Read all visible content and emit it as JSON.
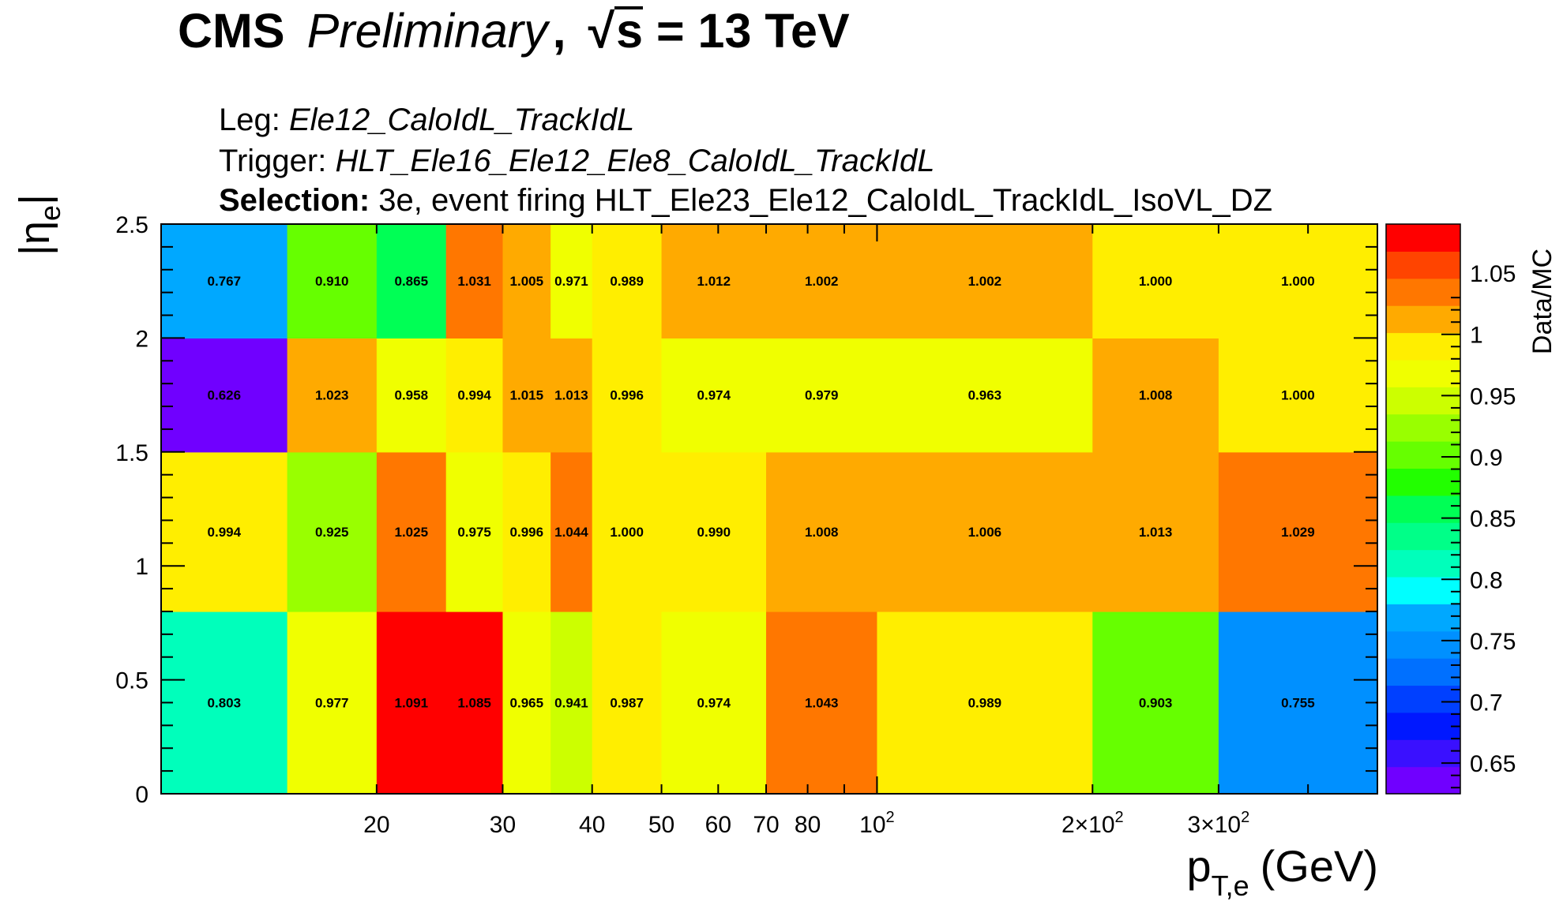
{
  "header": {
    "cms": "CMS",
    "preliminary": "Preliminary",
    "comma": ",",
    "sqrt_symbol": "√",
    "sqrt_arg": "s",
    "energy": "= 13 TeV"
  },
  "info": {
    "leg_label": "Leg:",
    "leg_value": "Ele12_CaloIdL_TrackIdL",
    "trigger_label": "Trigger:",
    "trigger_value": "HLT_Ele16_Ele12_Ele8_CaloIdL_TrackIdL",
    "selection_label": "Selection:",
    "selection_value": "3e, event firing HLT_Ele23_Ele12_CaloIdL_TrackIdL_IsoVL_DZ"
  },
  "chart_data": {
    "type": "heatmap",
    "xlabel": "p",
    "xlabel_sub": "T,e",
    "xlabel_unit": "(GeV)",
    "ylabel": "|η",
    "ylabel_sub": "e",
    "ylabel_close": "|",
    "zlabel": "Data/MC",
    "x_scale": "log",
    "x_edges": [
      10,
      15,
      20,
      25,
      30,
      35,
      40,
      50,
      70,
      100,
      200,
      300,
      500
    ],
    "y_edges": [
      0,
      0.8,
      1.5,
      2.0,
      2.5
    ],
    "x_tick_labels": [
      {
        "value": 20,
        "label": "20"
      },
      {
        "value": 30,
        "label": "30"
      },
      {
        "value": 40,
        "label": "40"
      },
      {
        "value": 50,
        "label": "50"
      },
      {
        "value": 60,
        "label": "60"
      },
      {
        "value": 70,
        "label": "70"
      },
      {
        "value": 80,
        "label": "80"
      },
      {
        "value": 100,
        "label": "10",
        "sup": "2"
      },
      {
        "value": 200,
        "label": "2×10",
        "sup": "2"
      },
      {
        "value": 300,
        "label": "3×10",
        "sup": "2"
      }
    ],
    "y_tick_labels": [
      "0",
      "0.5",
      "1",
      "1.5",
      "2",
      "2.5"
    ],
    "z_range": [
      0.625,
      1.09
    ],
    "z_tick_labels": [
      "0.65",
      "0.7",
      "0.75",
      "0.8",
      "0.85",
      "0.9",
      "0.95",
      "1",
      "1.05"
    ],
    "palette": [
      "#7000ff",
      "#3a10ff",
      "#0018ff",
      "#0040ff",
      "#0070ff",
      "#0090ff",
      "#00a8ff",
      "#00ffff",
      "#00ffbb",
      "#00ff88",
      "#00ff55",
      "#22ff00",
      "#66ff00",
      "#99ff00",
      "#ccff00",
      "#f0ff00",
      "#ffee00",
      "#ffaa00",
      "#ff7700",
      "#ff4400",
      "#ff0000"
    ],
    "values": [
      [
        0.803,
        0.977,
        1.091,
        1.085,
        0.965,
        0.941,
        0.987,
        0.974,
        1.043,
        0.989,
        0.903,
        0.755
      ],
      [
        0.994,
        0.925,
        1.025,
        0.975,
        0.996,
        1.044,
        1.0,
        0.99,
        1.008,
        1.006,
        1.013,
        1.029
      ],
      [
        0.626,
        1.023,
        0.958,
        0.994,
        1.015,
        1.013,
        0.996,
        0.974,
        0.979,
        0.963,
        1.008,
        1.0
      ],
      [
        0.767,
        0.91,
        0.865,
        1.031,
        1.005,
        0.971,
        0.989,
        1.012,
        1.002,
        1.002,
        1.0,
        1.0
      ]
    ]
  }
}
